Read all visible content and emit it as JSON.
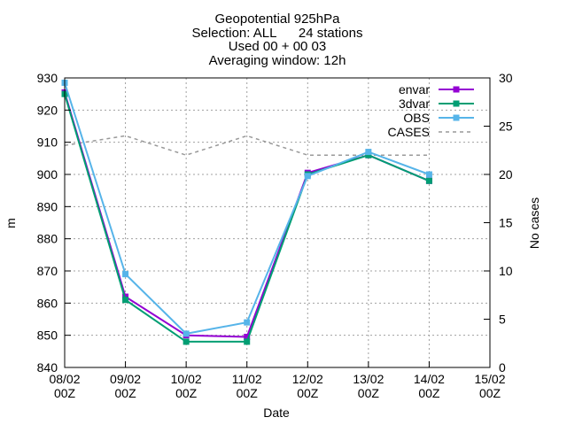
{
  "chart_data": {
    "type": "line",
    "title_lines": [
      "Geopotential 925hPa",
      "Selection: ALL      24 stations",
      "Used 00 + 00 03",
      "Averaging window: 12h"
    ],
    "xlabel": "Date",
    "ylabel": "m",
    "y2label": "No cases",
    "x_categories": [
      [
        "08/02",
        "00Z"
      ],
      [
        "09/02",
        "00Z"
      ],
      [
        "10/02",
        "00Z"
      ],
      [
        "11/02",
        "00Z"
      ],
      [
        "12/02",
        "00Z"
      ],
      [
        "13/02",
        "00Z"
      ],
      [
        "14/02",
        "00Z"
      ],
      [
        "15/02",
        "00Z"
      ]
    ],
    "x_range_days": [
      0,
      7
    ],
    "ylim": [
      840,
      930
    ],
    "y_ticks": [
      840,
      850,
      860,
      870,
      880,
      890,
      900,
      910,
      920,
      930
    ],
    "y2lim": [
      0,
      30
    ],
    "y2_ticks": [
      0,
      5,
      10,
      15,
      20,
      25,
      30
    ],
    "grid": true,
    "legend_position": "top-right",
    "series": [
      {
        "name": "envar",
        "color": "#9400d3",
        "marker": "square",
        "axis": "left",
        "x": [
          0,
          1,
          2,
          3,
          4,
          5,
          6
        ],
        "values": [
          925.5,
          862.0,
          850.0,
          849.5,
          900.5,
          906.0,
          898.0
        ]
      },
      {
        "name": "3dvar",
        "color": "#009e73",
        "marker": "square",
        "axis": "left",
        "x": [
          0,
          1,
          2,
          3,
          4,
          5,
          6
        ],
        "values": [
          925.0,
          861.0,
          848.0,
          848.0,
          900.0,
          906.0,
          898.0
        ]
      },
      {
        "name": "OBS",
        "color": "#56b4e9",
        "marker": "square",
        "axis": "left",
        "x": [
          0,
          1,
          2,
          3,
          4,
          5,
          6
        ],
        "values": [
          928.5,
          869.0,
          850.5,
          854.0,
          899.5,
          907.0,
          900.0
        ]
      },
      {
        "name": "CASES",
        "color": "#999999",
        "marker": "none",
        "dashed": true,
        "axis": "right",
        "x": [
          0,
          1,
          2,
          3,
          4,
          5,
          6
        ],
        "values": [
          23,
          24,
          22,
          24,
          22,
          22,
          22
        ]
      }
    ]
  }
}
